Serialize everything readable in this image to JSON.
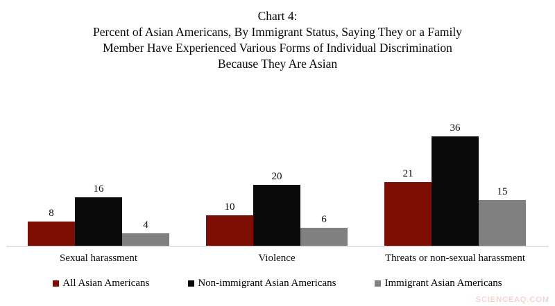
{
  "title_lines": [
    "Chart 4:",
    "Percent of Asian Americans, By Immigrant Status, Saying They or a Family",
    "Member Have Experienced Various Forms of Individual Discrimination",
    "Because They Are Asian"
  ],
  "chart_data": {
    "type": "bar",
    "title": "Chart 4: Percent of Asian Americans, By Immigrant Status, Saying They or a Family Member Have Experienced Various Forms of Individual Discrimination Because They Are Asian",
    "categories": [
      "Sexual harassment",
      "Violence",
      "Threats or non-sexual harassment"
    ],
    "series": [
      {
        "name": "All Asian Americans",
        "color": "#7E0D04",
        "values": [
          8,
          10,
          21
        ]
      },
      {
        "name": "Non-immigrant Asian Americans",
        "color": "#0A0A0A",
        "values": [
          16,
          20,
          36
        ]
      },
      {
        "name": "Immigrant Asian Americans",
        "color": "#808080",
        "values": [
          4,
          6,
          15
        ]
      }
    ],
    "xlabel": "",
    "ylabel": "",
    "ylim": [
      0,
      40
    ],
    "grid": false,
    "y_axis_visible": false,
    "legend_position": "bottom",
    "value_labels": true
  },
  "watermark": "SCIENCEAQ.COM",
  "colors": {
    "background": "#ffffff",
    "baseline": "#e2e2e2",
    "watermark": "#f3c5bf"
  }
}
